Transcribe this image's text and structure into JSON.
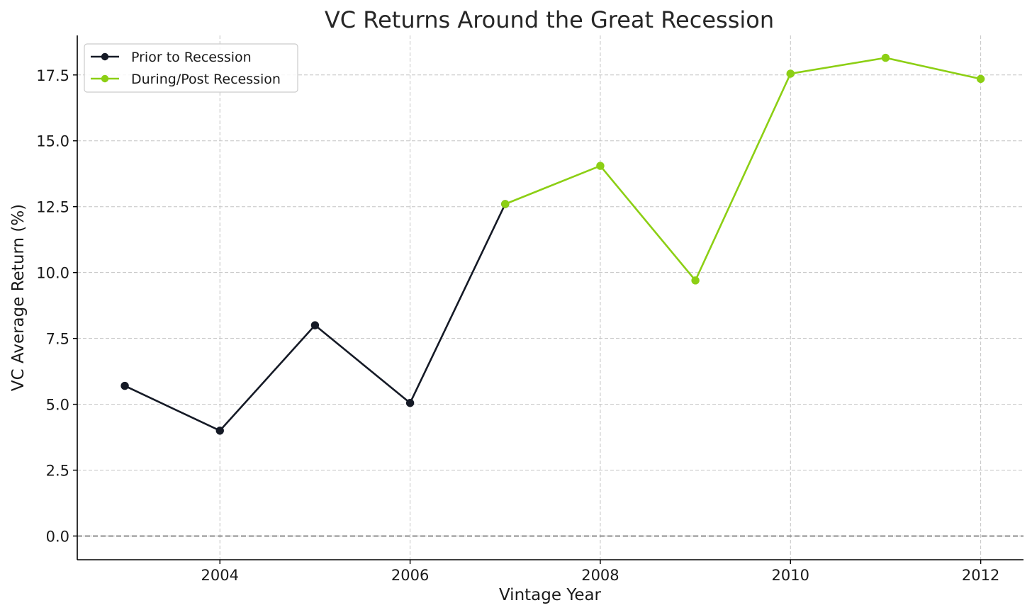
{
  "chart_data": {
    "type": "line",
    "title": "VC Returns Around the Great Recession",
    "xlabel": "Vintage Year",
    "ylabel": "VC Average Return (%)",
    "xlim": [
      2002.5,
      2012.45
    ],
    "ylim": [
      -0.9,
      19.0
    ],
    "xticks": [
      {
        "value": 2004,
        "label": "2004"
      },
      {
        "value": 2006,
        "label": "2006"
      },
      {
        "value": 2008,
        "label": "2008"
      },
      {
        "value": 2010,
        "label": "2010"
      },
      {
        "value": 2012,
        "label": "2012"
      }
    ],
    "yticks": [
      {
        "value": 0.0,
        "label": "0.0"
      },
      {
        "value": 2.5,
        "label": "2.5"
      },
      {
        "value": 5.0,
        "label": "5.0"
      },
      {
        "value": 7.5,
        "label": "7.5"
      },
      {
        "value": 10.0,
        "label": "10.0"
      },
      {
        "value": 12.5,
        "label": "12.5"
      },
      {
        "value": 15.0,
        "label": "15.0"
      },
      {
        "value": 17.5,
        "label": "17.5"
      }
    ],
    "grid": true,
    "zero_line": true,
    "legend_position": "top-left",
    "series": [
      {
        "name": "Prior to Recession",
        "color": "#151a26",
        "x": [
          2003,
          2004,
          2005,
          2006,
          2007
        ],
        "y": [
          5.7,
          4.0,
          8.0,
          5.05,
          12.6
        ]
      },
      {
        "name": "During/Post Recession",
        "color": "#8ccf14",
        "x": [
          2007,
          2008,
          2009,
          2010,
          2011,
          2012
        ],
        "y": [
          12.6,
          14.05,
          9.7,
          17.55,
          18.15,
          17.35
        ]
      }
    ]
  }
}
